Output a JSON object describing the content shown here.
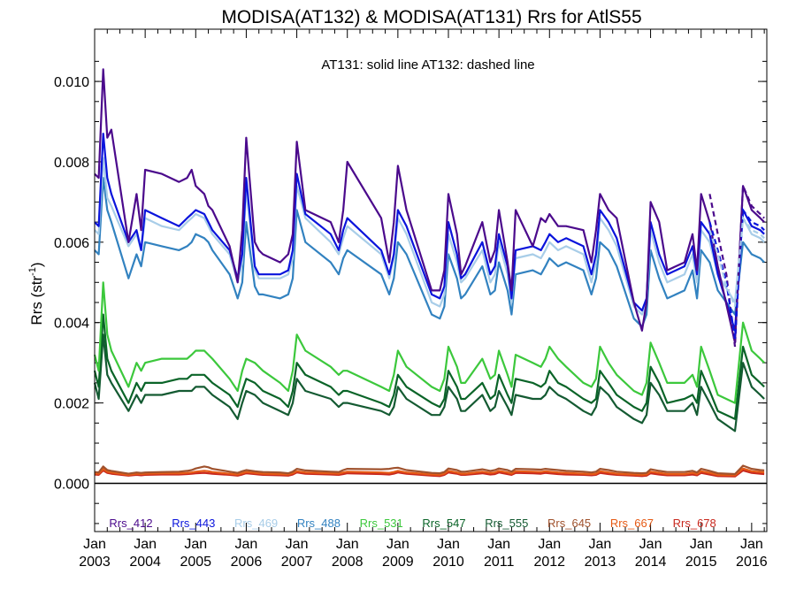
{
  "chart_data": {
    "type": "line",
    "title": "MODISA(AT132) & MODISA(AT131)  Rrs for AtlS55",
    "annotation": "AT131: solid line   AT132: dashed line",
    "ylabel_main": "Rrs (str",
    "ylabel_exp": "-1",
    "ylabel_close": ")",
    "xlim": [
      2003.0,
      2016.3
    ],
    "ylim": [
      -0.0012,
      0.0113
    ],
    "yticks": [
      "0.000",
      "0.002",
      "0.004",
      "0.006",
      "0.008",
      "0.010"
    ],
    "ytick_values": [
      0.0,
      0.002,
      0.004,
      0.006,
      0.008,
      0.01
    ],
    "xticks_top": [
      "Jan",
      "Jan",
      "Jan",
      "Jan",
      "Jan",
      "Jan",
      "Jan",
      "Jan",
      "Jan",
      "Jan",
      "Jan",
      "Jan",
      "Jan",
      "Jan"
    ],
    "xticks_bottom": [
      "2003",
      "2004",
      "2005",
      "2006",
      "2007",
      "2008",
      "2009",
      "2010",
      "2011",
      "2012",
      "2013",
      "2014",
      "2015",
      "2016"
    ],
    "xtick_values": [
      2003,
      2004,
      2005,
      2006,
      2007,
      2008,
      2009,
      2010,
      2011,
      2012,
      2013,
      2014,
      2015,
      2016
    ],
    "x": [
      2003.0,
      2003.08,
      2003.17,
      2003.25,
      2003.33,
      2003.67,
      2003.83,
      2003.92,
      2004.0,
      2004.33,
      2004.67,
      2004.83,
      2004.92,
      2005.0,
      2005.17,
      2005.25,
      2005.33,
      2005.67,
      2005.83,
      2005.92,
      2006.0,
      2006.17,
      2006.25,
      2006.33,
      2006.67,
      2006.83,
      2006.92,
      2007.0,
      2007.17,
      2007.67,
      2007.83,
      2007.92,
      2008.0,
      2008.67,
      2008.83,
      2008.92,
      2009.0,
      2009.17,
      2009.67,
      2009.83,
      2009.92,
      2010.0,
      2010.17,
      2010.25,
      2010.33,
      2010.67,
      2010.83,
      2010.92,
      2011.0,
      2011.17,
      2011.25,
      2011.33,
      2011.67,
      2011.83,
      2011.92,
      2012.0,
      2012.17,
      2012.33,
      2012.67,
      2012.83,
      2012.92,
      2013.0,
      2013.17,
      2013.33,
      2013.67,
      2013.83,
      2013.92,
      2014.0,
      2014.17,
      2014.33,
      2014.67,
      2014.83,
      2014.92,
      2015.0,
      2015.17,
      2015.33,
      2015.67,
      2015.83,
      2016.0,
      2016.17,
      2016.25
    ],
    "series": [
      {
        "name": "Rrs_412",
        "color": "#4B0A8C",
        "values": [
          0.0077,
          0.0076,
          0.0103,
          0.0086,
          0.0088,
          0.006,
          0.0072,
          0.0063,
          0.0078,
          0.0077,
          0.0075,
          0.0076,
          0.0078,
          0.0074,
          0.0072,
          0.0069,
          0.0068,
          0.0059,
          0.005,
          0.0063,
          0.0086,
          0.006,
          0.0058,
          0.0057,
          0.0055,
          0.0057,
          0.0062,
          0.0085,
          0.0068,
          0.0065,
          0.006,
          0.0068,
          0.008,
          0.0066,
          0.0055,
          0.0065,
          0.0079,
          0.0068,
          0.0048,
          0.0048,
          0.0053,
          0.0072,
          0.0062,
          0.0052,
          0.0054,
          0.0065,
          0.0055,
          0.0058,
          0.0068,
          0.0055,
          0.0048,
          0.0068,
          0.0059,
          0.0066,
          0.0065,
          0.0067,
          0.0064,
          0.0064,
          0.0063,
          0.0055,
          0.0063,
          0.0072,
          0.0068,
          0.0066,
          0.0045,
          0.0038,
          0.0045,
          0.007,
          0.0065,
          0.0053,
          0.0055,
          0.0062,
          0.0053,
          0.0072,
          0.0065,
          0.0054,
          0.0035,
          0.0074,
          0.0068,
          0.0066,
          0.0065
        ]
      },
      {
        "name": "Rrs_443",
        "color": "#0A14DC",
        "values": [
          0.0065,
          0.0064,
          0.0087,
          0.0076,
          0.0072,
          0.006,
          0.0063,
          0.0058,
          0.0068,
          0.0066,
          0.0064,
          0.0066,
          0.0067,
          0.0068,
          0.0067,
          0.0065,
          0.0063,
          0.0058,
          0.0051,
          0.0057,
          0.0076,
          0.0054,
          0.0052,
          0.0052,
          0.0052,
          0.0053,
          0.0058,
          0.0077,
          0.0067,
          0.0062,
          0.0058,
          0.0063,
          0.0066,
          0.0058,
          0.0052,
          0.0057,
          0.0068,
          0.0064,
          0.0047,
          0.0046,
          0.0049,
          0.0065,
          0.0057,
          0.0051,
          0.0052,
          0.006,
          0.0052,
          0.0054,
          0.0062,
          0.0054,
          0.0046,
          0.0058,
          0.0059,
          0.0058,
          0.006,
          0.0062,
          0.006,
          0.0061,
          0.0059,
          0.0052,
          0.0057,
          0.0068,
          0.0065,
          0.0061,
          0.0045,
          0.0043,
          0.0046,
          0.0065,
          0.0057,
          0.0052,
          0.0054,
          0.0059,
          0.0052,
          0.0065,
          0.0062,
          0.0052,
          0.0038,
          0.0068,
          0.0064,
          0.0063,
          0.0062
        ]
      },
      {
        "name": "Rrs_469",
        "color": "#A8CDE8",
        "values": [
          0.0063,
          0.0062,
          0.0081,
          0.0071,
          0.0069,
          0.0059,
          0.0062,
          0.0058,
          0.0066,
          0.0064,
          0.0063,
          0.0065,
          0.0066,
          0.0067,
          0.0066,
          0.0064,
          0.0062,
          0.0057,
          0.005,
          0.0055,
          0.0073,
          0.0053,
          0.0051,
          0.0051,
          0.0051,
          0.0052,
          0.0056,
          0.0074,
          0.0066,
          0.006,
          0.0057,
          0.0061,
          0.0064,
          0.0057,
          0.0051,
          0.0056,
          0.0066,
          0.0062,
          0.0045,
          0.0044,
          0.0047,
          0.0062,
          0.0055,
          0.005,
          0.0051,
          0.0058,
          0.005,
          0.0052,
          0.006,
          0.0052,
          0.0045,
          0.0056,
          0.0057,
          0.0056,
          0.0058,
          0.006,
          0.0058,
          0.0059,
          0.0057,
          0.005,
          0.0055,
          0.0066,
          0.0063,
          0.0059,
          0.0044,
          0.0042,
          0.0045,
          0.0063,
          0.0055,
          0.005,
          0.0052,
          0.0057,
          0.005,
          0.0063,
          0.006,
          0.0052,
          0.0045,
          0.0066,
          0.0062,
          0.0061,
          0.006
        ]
      },
      {
        "name": "Rrs_488",
        "color": "#3282C0",
        "values": [
          0.0058,
          0.0057,
          0.0076,
          0.0068,
          0.0065,
          0.0051,
          0.0057,
          0.0054,
          0.006,
          0.0059,
          0.0058,
          0.0059,
          0.006,
          0.0062,
          0.0061,
          0.006,
          0.0058,
          0.0052,
          0.0046,
          0.005,
          0.0065,
          0.0049,
          0.0047,
          0.0047,
          0.0046,
          0.0047,
          0.0051,
          0.0068,
          0.006,
          0.0055,
          0.0052,
          0.0056,
          0.0058,
          0.0052,
          0.0047,
          0.0051,
          0.006,
          0.0057,
          0.0042,
          0.0041,
          0.0044,
          0.0057,
          0.0051,
          0.0046,
          0.0047,
          0.0054,
          0.0047,
          0.0048,
          0.0055,
          0.0048,
          0.0042,
          0.0052,
          0.0053,
          0.0052,
          0.0054,
          0.0056,
          0.0054,
          0.0055,
          0.0053,
          0.0047,
          0.0051,
          0.006,
          0.0058,
          0.0054,
          0.0041,
          0.0039,
          0.0042,
          0.0058,
          0.0051,
          0.0046,
          0.0048,
          0.0053,
          0.0046,
          0.0058,
          0.0055,
          0.0048,
          0.0042,
          0.006,
          0.0057,
          0.0056,
          0.0055
        ]
      },
      {
        "name": "Rrs_531",
        "color": "#3CC83C",
        "values": [
          0.0032,
          0.0028,
          0.005,
          0.0037,
          0.0033,
          0.0024,
          0.003,
          0.0028,
          0.003,
          0.0031,
          0.0031,
          0.0031,
          0.0032,
          0.0033,
          0.0033,
          0.0032,
          0.0031,
          0.0026,
          0.0023,
          0.0028,
          0.0031,
          0.003,
          0.0029,
          0.0028,
          0.0025,
          0.0023,
          0.0028,
          0.0037,
          0.0033,
          0.0029,
          0.0027,
          0.0028,
          0.0028,
          0.0024,
          0.0023,
          0.0027,
          0.0033,
          0.0029,
          0.0024,
          0.0023,
          0.0026,
          0.0034,
          0.0029,
          0.0025,
          0.0025,
          0.0031,
          0.0026,
          0.0027,
          0.0033,
          0.0027,
          0.0024,
          0.0032,
          0.003,
          0.0029,
          0.0031,
          0.0034,
          0.0031,
          0.0029,
          0.0025,
          0.0024,
          0.0026,
          0.0034,
          0.003,
          0.0027,
          0.0023,
          0.0022,
          0.0025,
          0.0035,
          0.003,
          0.0025,
          0.0025,
          0.0027,
          0.0024,
          0.0034,
          0.0028,
          0.0022,
          0.002,
          0.004,
          0.0033,
          0.0031,
          0.003
        ]
      },
      {
        "name": "Rrs_547",
        "color": "#0A6428",
        "values": [
          0.0028,
          0.0024,
          0.0042,
          0.0031,
          0.0028,
          0.002,
          0.0025,
          0.0023,
          0.0025,
          0.0025,
          0.0026,
          0.0026,
          0.0027,
          0.0027,
          0.0027,
          0.0026,
          0.0025,
          0.0022,
          0.0019,
          0.0023,
          0.0026,
          0.0025,
          0.0024,
          0.0023,
          0.0021,
          0.0019,
          0.0023,
          0.003,
          0.0027,
          0.0024,
          0.0022,
          0.0023,
          0.0023,
          0.002,
          0.0019,
          0.0022,
          0.0027,
          0.0024,
          0.002,
          0.0019,
          0.0021,
          0.0028,
          0.0024,
          0.0021,
          0.0021,
          0.0025,
          0.0021,
          0.0022,
          0.0027,
          0.0022,
          0.002,
          0.0026,
          0.0025,
          0.0024,
          0.0025,
          0.0028,
          0.0025,
          0.0024,
          0.0021,
          0.002,
          0.0021,
          0.0028,
          0.0025,
          0.0022,
          0.0019,
          0.0018,
          0.002,
          0.0029,
          0.0025,
          0.002,
          0.0021,
          0.0022,
          0.002,
          0.0028,
          0.0023,
          0.0018,
          0.0016,
          0.0034,
          0.0027,
          0.0025,
          0.0024
        ]
      },
      {
        "name": "Rrs_555",
        "color": "#145A32",
        "values": [
          0.0025,
          0.0021,
          0.0037,
          0.0027,
          0.0025,
          0.0018,
          0.0022,
          0.002,
          0.0022,
          0.0022,
          0.0023,
          0.0023,
          0.0023,
          0.0024,
          0.0024,
          0.0023,
          0.0022,
          0.0019,
          0.0016,
          0.002,
          0.0023,
          0.0022,
          0.0021,
          0.002,
          0.0018,
          0.0017,
          0.002,
          0.0026,
          0.0023,
          0.0021,
          0.0019,
          0.002,
          0.002,
          0.0018,
          0.0017,
          0.0019,
          0.0024,
          0.0021,
          0.0017,
          0.0017,
          0.0019,
          0.0024,
          0.0021,
          0.0018,
          0.0018,
          0.0022,
          0.0018,
          0.0019,
          0.0023,
          0.0019,
          0.0017,
          0.0022,
          0.0021,
          0.0021,
          0.0022,
          0.0024,
          0.0022,
          0.0021,
          0.0018,
          0.0017,
          0.0019,
          0.0024,
          0.0022,
          0.0019,
          0.0016,
          0.0015,
          0.0017,
          0.0025,
          0.0022,
          0.0018,
          0.0018,
          0.002,
          0.0017,
          0.0024,
          0.002,
          0.0016,
          0.0013,
          0.003,
          0.0024,
          0.0022,
          0.0021
        ]
      },
      {
        "name": "Rrs_645",
        "color": "#A0522D",
        "values": [
          0.00028,
          0.00027,
          0.00042,
          0.00033,
          0.00031,
          0.00024,
          0.00027,
          0.00026,
          0.00027,
          0.00028,
          0.00029,
          0.00031,
          0.00033,
          0.00037,
          0.00042,
          0.0004,
          0.00036,
          0.00029,
          0.00026,
          0.0003,
          0.00033,
          0.0003,
          0.00029,
          0.00028,
          0.00027,
          0.00025,
          0.00029,
          0.00036,
          0.00032,
          0.00029,
          0.00028,
          0.00033,
          0.00036,
          0.00035,
          0.00036,
          0.00038,
          0.00039,
          0.00033,
          0.00026,
          0.00025,
          0.00028,
          0.00037,
          0.00033,
          0.00029,
          0.00029,
          0.00035,
          0.00031,
          0.00033,
          0.00037,
          0.00033,
          0.00029,
          0.00036,
          0.00035,
          0.00034,
          0.00036,
          0.00035,
          0.00033,
          0.00031,
          0.00029,
          0.00027,
          0.00029,
          0.00036,
          0.00033,
          0.00029,
          0.00026,
          0.00025,
          0.00026,
          0.00035,
          0.00031,
          0.00028,
          0.00028,
          0.00031,
          0.00027,
          0.00036,
          0.00031,
          0.00025,
          0.00023,
          0.00044,
          0.00036,
          0.00033,
          0.00032
        ]
      },
      {
        "name": "Rrs_667",
        "color": "#E65A14",
        "values": [
          0.00025,
          0.00024,
          0.00036,
          0.00029,
          0.00027,
          0.00021,
          0.00024,
          0.00023,
          0.00024,
          0.00025,
          0.00025,
          0.00026,
          0.00027,
          0.00029,
          0.00031,
          0.0003,
          0.00028,
          0.00024,
          0.00022,
          0.00025,
          0.00028,
          0.00026,
          0.00025,
          0.00024,
          0.00023,
          0.00022,
          0.00025,
          0.0003,
          0.00027,
          0.00025,
          0.00024,
          0.00027,
          0.00029,
          0.00027,
          0.00026,
          0.00028,
          0.00031,
          0.00027,
          0.00022,
          0.00021,
          0.00024,
          0.00031,
          0.00027,
          0.00024,
          0.00024,
          0.00029,
          0.00026,
          0.00027,
          0.00031,
          0.00027,
          0.00024,
          0.0003,
          0.00029,
          0.00028,
          0.0003,
          0.00029,
          0.00027,
          0.00026,
          0.00024,
          0.00023,
          0.00024,
          0.0003,
          0.00027,
          0.00024,
          0.00022,
          0.00021,
          0.00022,
          0.00029,
          0.00026,
          0.00023,
          0.00023,
          0.00026,
          0.00023,
          0.0003,
          0.00026,
          0.00021,
          0.0002,
          0.00037,
          0.0003,
          0.00028,
          0.00027
        ]
      },
      {
        "name": "Rrs_678",
        "color": "#C8281E",
        "values": [
          0.00022,
          0.00021,
          0.00032,
          0.00026,
          0.00024,
          0.00019,
          0.00021,
          0.0002,
          0.00021,
          0.00022,
          0.00022,
          0.00023,
          0.00024,
          0.00025,
          0.00026,
          0.00025,
          0.00024,
          0.00021,
          0.00019,
          0.00022,
          0.00025,
          0.00023,
          0.00022,
          0.00021,
          0.0002,
          0.00019,
          0.00022,
          0.00027,
          0.00024,
          0.00022,
          0.00021,
          0.00023,
          0.00025,
          0.00023,
          0.00022,
          0.00024,
          0.00027,
          0.00024,
          0.00019,
          0.00018,
          0.00021,
          0.00027,
          0.00024,
          0.00021,
          0.00021,
          0.00025,
          0.00022,
          0.00023,
          0.00027,
          0.00023,
          0.00021,
          0.00026,
          0.00025,
          0.00024,
          0.00026,
          0.00025,
          0.00023,
          0.00022,
          0.00021,
          0.0002,
          0.00021,
          0.00026,
          0.00023,
          0.00021,
          0.00019,
          0.00018,
          0.00019,
          0.00025,
          0.00022,
          0.0002,
          0.0002,
          0.00022,
          0.0002,
          0.00026,
          0.00022,
          0.00018,
          0.00017,
          0.00032,
          0.00026,
          0.00024,
          0.00023
        ]
      }
    ],
    "dashed_x": [
      2015.17,
      2015.33,
      2015.5,
      2015.67,
      2015.83,
      2016.0,
      2016.17,
      2016.25
    ],
    "dashed_series": [
      {
        "name": "Rrs_412",
        "color": "#4B0A8C",
        "values": [
          0.0072,
          0.0062,
          0.0052,
          0.0034,
          0.0074,
          0.0069,
          0.0067,
          0.0066
        ]
      },
      {
        "name": "Rrs_443",
        "color": "#0A14DC",
        "values": [
          0.0065,
          0.0058,
          0.005,
          0.0036,
          0.0068,
          0.0065,
          0.0064,
          0.0063
        ]
      },
      {
        "name": "Rrs_469",
        "color": "#A8CDE8",
        "values": [
          0.0063,
          0.0057,
          0.0049,
          0.0044,
          0.0066,
          0.0063,
          0.0062,
          0.0061
        ]
      }
    ],
    "legend_placement": "bottom inside plot",
    "grid": false
  }
}
